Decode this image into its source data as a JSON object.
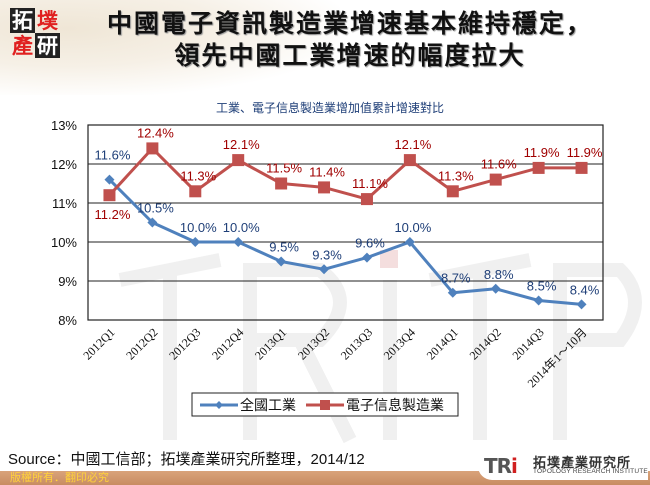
{
  "header": {
    "logo_chars": [
      "拓",
      "墣",
      "產",
      "研"
    ],
    "title_line1": "中國電子資訊製造業增速基本維持穩定，",
    "title_line2": "領先中國工業增速的幅度拉大"
  },
  "chart_data": {
    "type": "line",
    "title": "工業、電子信息製造業增加值累計增速對比",
    "xlabel": "",
    "ylabel": "",
    "ylim": [
      8,
      13
    ],
    "yticks": [
      "8%",
      "9%",
      "10%",
      "11%",
      "12%",
      "13%"
    ],
    "grid": true,
    "legend_position": "bottom",
    "categories": [
      "2012Q1",
      "2012Q2",
      "2012Q3",
      "2012Q4",
      "2013Q1",
      "2013Q2",
      "2013Q3",
      "2013Q4",
      "2014Q1",
      "2014Q2",
      "2014Q3",
      "2014年1～10月"
    ],
    "series": [
      {
        "name": "全國工業",
        "color": "#4f81bd",
        "label_color": "#1f3f78",
        "marker": "diamond",
        "values": [
          11.6,
          10.5,
          10.0,
          10.0,
          9.5,
          9.3,
          9.6,
          10.0,
          8.7,
          8.8,
          8.5,
          8.4
        ],
        "labels": [
          "11.6%",
          "10.5%",
          "10.0%",
          "10.0%",
          "9.5%",
          "9.3%",
          "9.6%",
          "10.0%",
          "8.7%",
          "8.8%",
          "8.5%",
          "8.4%"
        ]
      },
      {
        "name": "電子信息製造業",
        "color": "#c0504d",
        "label_color": "#a00000",
        "marker": "square",
        "values": [
          11.2,
          12.4,
          11.3,
          12.1,
          11.5,
          11.4,
          11.1,
          12.1,
          11.3,
          11.6,
          11.9,
          11.9
        ],
        "labels": [
          "11.2%",
          "12.4%",
          "11.3%",
          "12.1%",
          "11.5%",
          "11.4%",
          "11.1%",
          "12.1%",
          "11.3%",
          "11.6%",
          "11.9%",
          "11.9%"
        ]
      }
    ]
  },
  "footer": {
    "source": "Source：中國工信部；拓墣產業研究所整理，2014/12",
    "copyright": "版權所有．翻印必究",
    "tri_mark": "TR",
    "tri_mark_i": "i",
    "tri_cn": "拓墣產業研究所",
    "tri_en": "TOPOLOGY RESEARCH INSTITUTE"
  }
}
